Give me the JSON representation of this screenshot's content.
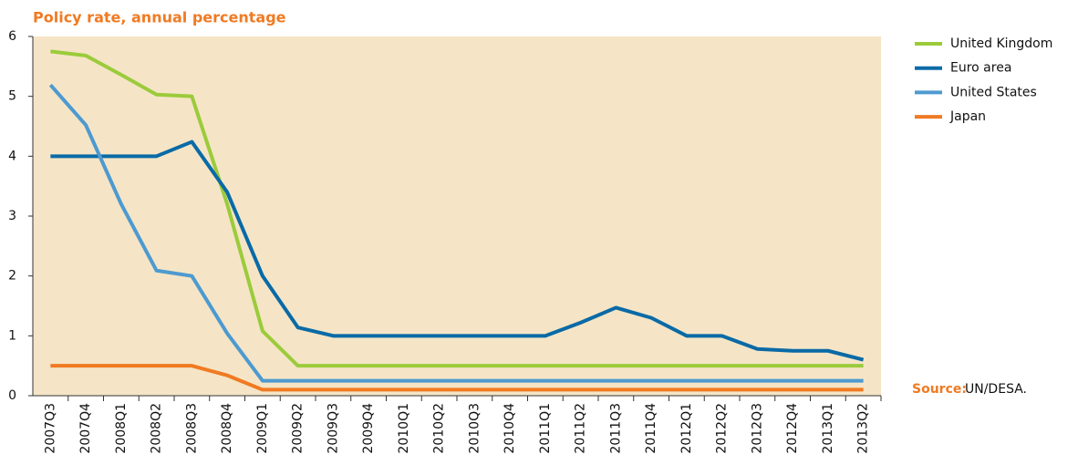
{
  "chart_data": {
    "type": "line",
    "title": "Policy rate, annual percentage",
    "categories": [
      "2007Q3",
      "2007Q4",
      "2008Q1",
      "2008Q2",
      "2008Q3",
      "2008Q4",
      "2009Q1",
      "2009Q2",
      "2009Q3",
      "2009Q4",
      "2010Q1",
      "2010Q2",
      "2010Q3",
      "2010Q4",
      "2011Q1",
      "2011Q2",
      "2011Q3",
      "2011Q4",
      "2012Q1",
      "2012Q2",
      "2012Q3",
      "2012Q4",
      "2013Q1",
      "2013Q2"
    ],
    "series": [
      {
        "name": "United Kingdom",
        "color": "#9bcb3b",
        "values": [
          5.75,
          5.68,
          5.36,
          5.03,
          5.0,
          3.2,
          1.08,
          0.5,
          0.5,
          0.5,
          0.5,
          0.5,
          0.5,
          0.5,
          0.5,
          0.5,
          0.5,
          0.5,
          0.5,
          0.5,
          0.5,
          0.5,
          0.5,
          0.5
        ]
      },
      {
        "name": "Euro area",
        "color": "#0a6aa6",
        "values": [
          4,
          4,
          4,
          4,
          4.24,
          3.4,
          2.0,
          1.14,
          1,
          1,
          1,
          1,
          1,
          1,
          1,
          1.22,
          1.47,
          1.3,
          1,
          1,
          0.78,
          0.75,
          0.75,
          0.6
        ]
      },
      {
        "name": "United States",
        "color": "#4d9ad0",
        "values": [
          5.19,
          4.52,
          3.2,
          2.09,
          2.0,
          1.04,
          0.25,
          0.25,
          0.25,
          0.25,
          0.25,
          0.25,
          0.25,
          0.25,
          0.25,
          0.25,
          0.25,
          0.25,
          0.25,
          0.25,
          0.25,
          0.25,
          0.25,
          0.25
        ]
      },
      {
        "name": "Japan",
        "color": "#f07a22",
        "values": [
          0.5,
          0.5,
          0.5,
          0.5,
          0.5,
          0.34,
          0.1,
          0.1,
          0.1,
          0.1,
          0.1,
          0.1,
          0.1,
          0.1,
          0.1,
          0.1,
          0.1,
          0.1,
          0.1,
          0.1,
          0.1,
          0.1,
          0.1,
          0.1
        ]
      }
    ],
    "ylim": [
      0,
      6
    ],
    "yticks": [
      0,
      1,
      2,
      3,
      4,
      5,
      6
    ],
    "grid": false,
    "legend": "right",
    "source_label": "Source:",
    "source": "UN/DESA."
  }
}
